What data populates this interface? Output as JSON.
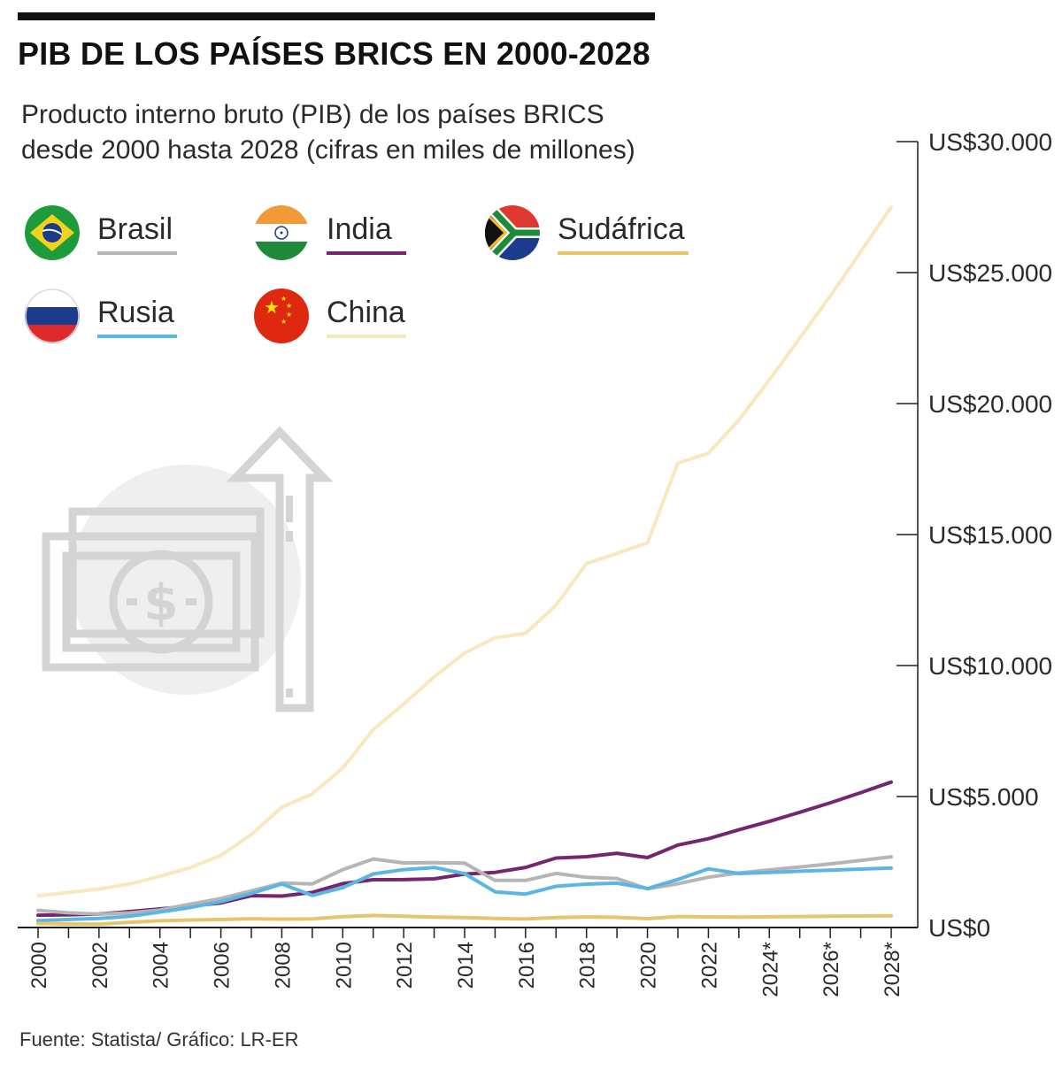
{
  "title": "PIB DE LOS PAÍSES BRICS EN 2000-2028",
  "subtitle": "Producto interno bruto (PIB) de los países BRICS\ndesde 2000 hasta 2028 (cifras en miles de millones)",
  "source": "Fuente: Statista/ Gráfico: LR-ER",
  "legend": [
    {
      "label": "Brasil",
      "color": "#b5b5b5",
      "flag": "brazil-flag-icon"
    },
    {
      "label": "India",
      "color": "#76256f",
      "flag": "india-flag-icon"
    },
    {
      "label": "Sudáfrica",
      "color": "#e8c46b",
      "flag": "south-africa-flag-icon"
    },
    {
      "label": "Rusia",
      "color": "#5cb6e3",
      "flag": "russia-flag-icon"
    },
    {
      "label": "China",
      "color": "#f9e8bd",
      "flag": "china-flag-icon"
    }
  ],
  "chart_data": {
    "type": "line",
    "x": [
      "2000",
      "2001",
      "2002",
      "2003",
      "2004",
      "2005",
      "2006",
      "2007",
      "2008",
      "2009",
      "2010",
      "2011",
      "2012",
      "2013",
      "2014",
      "2015",
      "2016",
      "2017",
      "2018",
      "2019",
      "2020",
      "2021",
      "2022",
      "2023",
      "2024",
      "2025",
      "2026",
      "2027",
      "2028"
    ],
    "xticks": [
      "2000",
      "2002",
      "2004",
      "2006",
      "2008",
      "2010",
      "2012",
      "2014",
      "2016",
      "2018",
      "2020",
      "2022",
      "2024*",
      "2026*",
      "2028*"
    ],
    "yticks": [
      "US$0",
      "US$5.000",
      "US$10.000",
      "US$15.000",
      "US$20.000",
      "US$25.000",
      "US$30.000"
    ],
    "ylim": [
      0,
      30000
    ],
    "series": [
      {
        "name": "China",
        "color": "#f9e8bd",
        "values": [
          1211,
          1339,
          1471,
          1660,
          1955,
          2286,
          2752,
          3550,
          4594,
          5102,
          6087,
          7552,
          8532,
          9570,
          10476,
          11062,
          11233,
          12310,
          13895,
          14280,
          14688,
          17734,
          18100,
          19374,
          20900,
          22500,
          24100,
          25800,
          27500
        ]
      },
      {
        "name": "India",
        "color": "#76256f",
        "values": [
          468,
          485,
          515,
          608,
          709,
          820,
          940,
          1217,
          1199,
          1342,
          1676,
          1823,
          1828,
          1857,
          2039,
          2104,
          2295,
          2651,
          2703,
          2835,
          2668,
          3150,
          3390,
          3730,
          4050,
          4400,
          4760,
          5150,
          5550
        ]
      },
      {
        "name": "Brasil",
        "color": "#b5b5b5",
        "values": [
          655,
          560,
          510,
          558,
          669,
          892,
          1107,
          1397,
          1695,
          1667,
          2209,
          2616,
          2465,
          2473,
          2456,
          1802,
          1796,
          2064,
          1917,
          1873,
          1476,
          1670,
          1920,
          2080,
          2200,
          2310,
          2430,
          2560,
          2700
        ]
      },
      {
        "name": "Rusia",
        "color": "#5cb6e3",
        "values": [
          260,
          307,
          345,
          430,
          591,
          764,
          990,
          1300,
          1661,
          1223,
          1525,
          2045,
          2208,
          2292,
          2059,
          1363,
          1277,
          1574,
          1657,
          1693,
          1489,
          1836,
          2240,
          2060,
          2100,
          2150,
          2190,
          2230,
          2270
        ]
      },
      {
        "name": "Sudáfrica",
        "color": "#e8c46b",
        "values": [
          152,
          135,
          129,
          198,
          256,
          288,
          304,
          333,
          317,
          330,
          417,
          458,
          434,
          400,
          381,
          347,
          323,
          381,
          404,
          388,
          338,
          420,
          406,
          400,
          410,
          420,
          430,
          440,
          450
        ]
      }
    ]
  }
}
